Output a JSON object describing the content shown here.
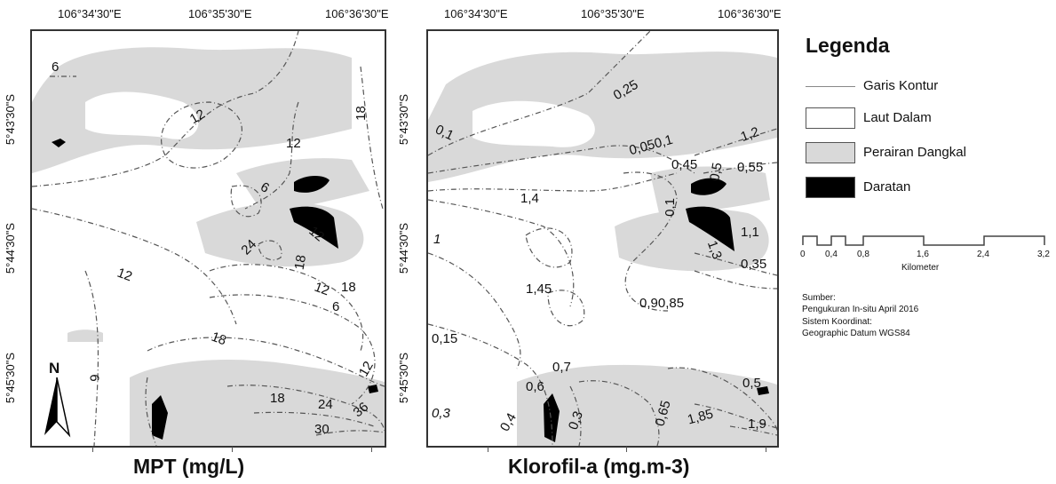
{
  "maps": [
    {
      "title": "MPT (mg/L)",
      "top_lon_labels": [
        "106°34'30\"E",
        "106°35'30\"E",
        "106°36'30\"E"
      ],
      "lat_labels": [
        "5°43'30\"S",
        "5°44'30\"S",
        "5°45'30\"S"
      ],
      "contour_labels": [
        "6",
        "12",
        "12",
        "18",
        "6",
        "12",
        "24",
        "18",
        "12",
        "18",
        "6",
        "12",
        "18",
        "6",
        "18",
        "24",
        "36",
        "30",
        "12"
      ]
    },
    {
      "title": "Klorofil-a (mg.m-3)",
      "top_lon_labels": [
        "106°34'30\"E",
        "106°35'30\"E",
        "106°36'30\"E"
      ],
      "lat_labels": [
        "5°43'30\"S",
        "5°44'30\"S",
        "5°45'30\"S"
      ],
      "contour_labels": [
        "0,25",
        "0,1",
        "1,2",
        "0,050,1",
        "0,45",
        "0,55",
        "0,5",
        "1,4",
        "0,1",
        "1",
        "1,1",
        "1,3",
        "0,35",
        "1,45",
        "0,90,85",
        "0,15",
        "0,7",
        "0,6",
        "0,5",
        "0,4",
        "0,3",
        "0,3",
        "0,65",
        "1,85",
        "1,9"
      ]
    }
  ],
  "legend": {
    "title": "Legenda",
    "items": [
      {
        "label": "Garis Kontur",
        "type": "line"
      },
      {
        "label": "Laut Dalam",
        "color": "#ffffff"
      },
      {
        "label": "Perairan Dangkal",
        "color": "#d9d9d9"
      },
      {
        "label": "Daratan",
        "color": "#000000"
      }
    ]
  },
  "scalebar": {
    "ticks": [
      "0",
      "0,4",
      "0,8",
      "1,6",
      "2,4",
      "3,2"
    ],
    "unit": "Kilometer"
  },
  "north_arrow": {
    "label": "N"
  },
  "source": {
    "lines": [
      "Sumber:",
      "Pengukuran In-situ April 2016",
      "Sistem Koordinat:",
      "Geographic Datum WGS84"
    ]
  }
}
